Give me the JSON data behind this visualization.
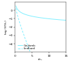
{
  "title": "",
  "xlabel": "r/r₀",
  "ylabel": "log (V/V₀)",
  "xlim": [
    0,
    15
  ],
  "ylim": [
    -5,
    1
  ],
  "xticks": [
    0,
    5,
    10,
    15
  ],
  "yticks": [
    0,
    -1,
    -2,
    -3,
    -4
  ],
  "curve_color": "#7fefff",
  "legend_entries": [
    "Coulomb",
    "Lindhard"
  ],
  "background_color": "#ffffff",
  "figsize": [
    1.0,
    0.98
  ],
  "dpi": 100
}
